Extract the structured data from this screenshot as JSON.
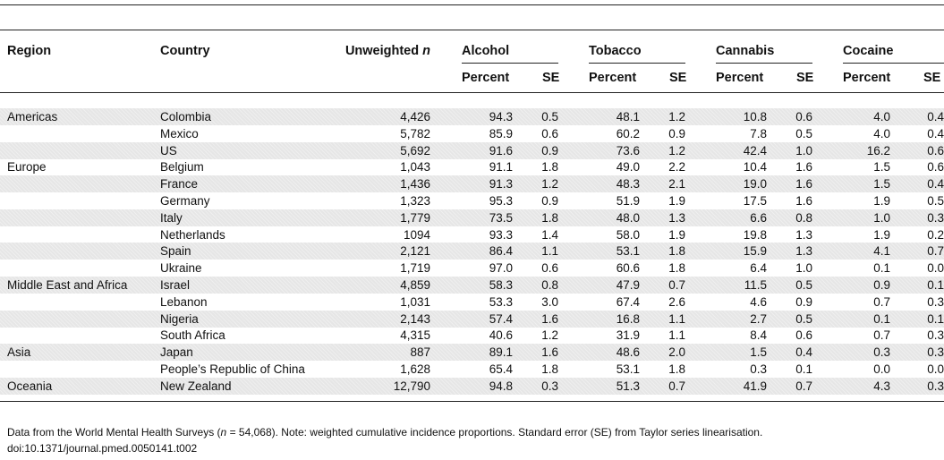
{
  "headers": {
    "region": "Region",
    "country": "Country",
    "unweighted": "Unweighted",
    "n": "n",
    "groups": [
      "Alcohol",
      "Tobacco",
      "Cannabis",
      "Cocaine"
    ],
    "percent": "Percent",
    "se": "SE"
  },
  "rows": [
    {
      "region": "Americas",
      "country": "Colombia",
      "n": "4,426",
      "v": [
        "94.3",
        "0.5",
        "48.1",
        "1.2",
        "10.8",
        "0.6",
        "4.0",
        "0.4"
      ],
      "shaded": true
    },
    {
      "region": "",
      "country": "Mexico",
      "n": "5,782",
      "v": [
        "85.9",
        "0.6",
        "60.2",
        "0.9",
        "7.8",
        "0.5",
        "4.0",
        "0.4"
      ],
      "shaded": false
    },
    {
      "region": "",
      "country": "US",
      "n": "5,692",
      "v": [
        "91.6",
        "0.9",
        "73.6",
        "1.2",
        "42.4",
        "1.0",
        "16.2",
        "0.6"
      ],
      "shaded": true
    },
    {
      "region": "Europe",
      "country": "Belgium",
      "n": "1,043",
      "v": [
        "91.1",
        "1.8",
        "49.0",
        "2.2",
        "10.4",
        "1.6",
        "1.5",
        "0.6"
      ],
      "shaded": false
    },
    {
      "region": "",
      "country": "France",
      "n": "1,436",
      "v": [
        "91.3",
        "1.2",
        "48.3",
        "2.1",
        "19.0",
        "1.6",
        "1.5",
        "0.4"
      ],
      "shaded": true
    },
    {
      "region": "",
      "country": "Germany",
      "n": "1,323",
      "v": [
        "95.3",
        "0.9",
        "51.9",
        "1.9",
        "17.5",
        "1.6",
        "1.9",
        "0.5"
      ],
      "shaded": false
    },
    {
      "region": "",
      "country": "Italy",
      "n": "1,779",
      "v": [
        "73.5",
        "1.8",
        "48.0",
        "1.3",
        "6.6",
        "0.8",
        "1.0",
        "0.3"
      ],
      "shaded": true
    },
    {
      "region": "",
      "country": "Netherlands",
      "n": "1094",
      "v": [
        "93.3",
        "1.4",
        "58.0",
        "1.9",
        "19.8",
        "1.3",
        "1.9",
        "0.2"
      ],
      "shaded": false
    },
    {
      "region": "",
      "country": "Spain",
      "n": "2,121",
      "v": [
        "86.4",
        "1.1",
        "53.1",
        "1.8",
        "15.9",
        "1.3",
        "4.1",
        "0.7"
      ],
      "shaded": true
    },
    {
      "region": "",
      "country": "Ukraine",
      "n": "1,719",
      "v": [
        "97.0",
        "0.6",
        "60.6",
        "1.8",
        "6.4",
        "1.0",
        "0.1",
        "0.0"
      ],
      "shaded": false
    },
    {
      "region": "Middle East and Africa",
      "country": "Israel",
      "n": "4,859",
      "v": [
        "58.3",
        "0.8",
        "47.9",
        "0.7",
        "11.5",
        "0.5",
        "0.9",
        "0.1"
      ],
      "shaded": true
    },
    {
      "region": "",
      "country": "Lebanon",
      "n": "1,031",
      "v": [
        "53.3",
        "3.0",
        "67.4",
        "2.6",
        "4.6",
        "0.9",
        "0.7",
        "0.3"
      ],
      "shaded": false
    },
    {
      "region": "",
      "country": "Nigeria",
      "n": "2,143",
      "v": [
        "57.4",
        "1.6",
        "16.8",
        "1.1",
        "2.7",
        "0.5",
        "0.1",
        "0.1"
      ],
      "shaded": true
    },
    {
      "region": "",
      "country": "South Africa",
      "n": "4,315",
      "v": [
        "40.6",
        "1.2",
        "31.9",
        "1.1",
        "8.4",
        "0.6",
        "0.7",
        "0.3"
      ],
      "shaded": false
    },
    {
      "region": "Asia",
      "country": "Japan",
      "n": "887",
      "v": [
        "89.1",
        "1.6",
        "48.6",
        "2.0",
        "1.5",
        "0.4",
        "0.3",
        "0.3"
      ],
      "shaded": true
    },
    {
      "region": "",
      "country": "People’s Republic of China",
      "n": "1,628",
      "v": [
        "65.4",
        "1.8",
        "53.1",
        "1.8",
        "0.3",
        "0.1",
        "0.0",
        "0.0"
      ],
      "shaded": false
    },
    {
      "region": "Oceania",
      "country": "New Zealand",
      "n": "12,790",
      "v": [
        "94.8",
        "0.3",
        "51.3",
        "0.7",
        "41.9",
        "0.7",
        "4.3",
        "0.3"
      ],
      "shaded": true
    }
  ],
  "footnote": {
    "prefix": "Data from the World Mental Health Surveys (",
    "n": "n",
    "suffix": " = 54,068). Note: weighted cumulative incidence proportions. Standard error (SE) from Taylor series linearisation.",
    "doi": "doi:10.1371/journal.pmed.0050141.t002"
  }
}
